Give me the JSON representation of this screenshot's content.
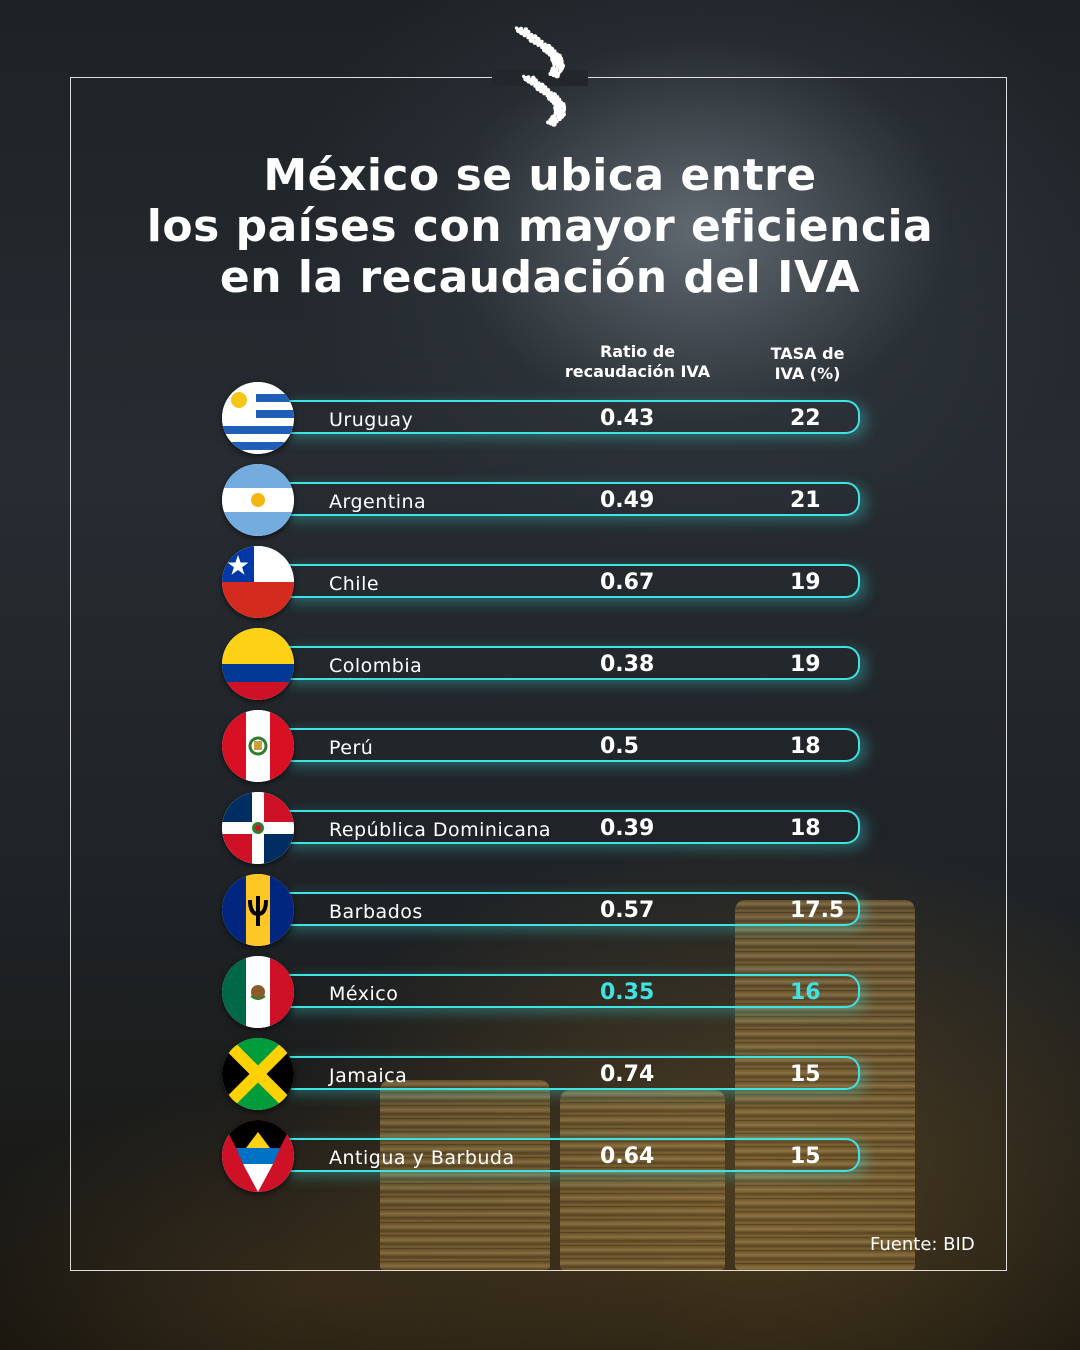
{
  "title": {
    "line1": "México se ubica entre",
    "line2": "los países con mayor eficiencia",
    "line3": "en la recaudación del IVA"
  },
  "column_headers": {
    "ratio_line1": "Ratio de",
    "ratio_line2": "recaudación IVA",
    "rate_line1": "TASA de",
    "rate_line2": "IVA (%)"
  },
  "source": "Fuente: BID",
  "colors": {
    "accent": "#3fe3e3",
    "text": "#ffffff"
  },
  "chart_data": {
    "type": "table",
    "columns": [
      "Ratio de recaudación IVA",
      "TASA de IVA (%)"
    ],
    "highlight": "México",
    "rows": [
      {
        "country": "Uruguay",
        "ratio": "0.43",
        "rate": "22",
        "flag": "uruguay-flag-icon"
      },
      {
        "country": "Argentina",
        "ratio": "0.49",
        "rate": "21",
        "flag": "argentina-flag-icon"
      },
      {
        "country": "Chile",
        "ratio": "0.67",
        "rate": "19",
        "flag": "chile-flag-icon"
      },
      {
        "country": "Colombia",
        "ratio": "0.38",
        "rate": "19",
        "flag": "colombia-flag-icon"
      },
      {
        "country": "Perú",
        "ratio": "0.5",
        "rate": "18",
        "flag": "peru-flag-icon"
      },
      {
        "country": "República Dominicana",
        "ratio": "0.39",
        "rate": "18",
        "flag": "dominican-republic-flag-icon"
      },
      {
        "country": "Barbados",
        "ratio": "0.57",
        "rate": "17.5",
        "flag": "barbados-flag-icon"
      },
      {
        "country": "México",
        "ratio": "0.35",
        "rate": "16",
        "flag": "mexico-flag-icon"
      },
      {
        "country": "Jamaica",
        "ratio": "0.74",
        "rate": "15",
        "flag": "jamaica-flag-icon"
      },
      {
        "country": "Antigua y Barbuda",
        "ratio": "0.64",
        "rate": "15",
        "flag": "antigua-and-barbuda-flag-icon"
      }
    ]
  }
}
